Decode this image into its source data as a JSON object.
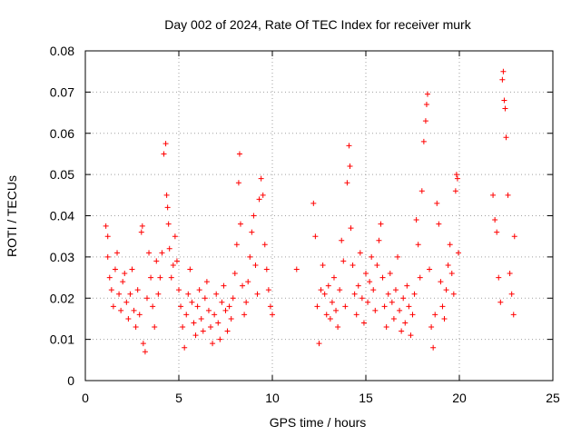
{
  "chart_data": {
    "type": "scatter",
    "title": "Day 002 of 2024, Rate Of TEC Index for receiver murk",
    "xlabel": "GPS time / hours",
    "ylabel": "ROTI / TECUs",
    "xlim": [
      0,
      25
    ],
    "ylim": [
      0,
      0.08
    ],
    "xticks": [
      0,
      5,
      10,
      15,
      20,
      25
    ],
    "xtick_labels": [
      "0",
      "5",
      "10",
      "15",
      "20",
      "25"
    ],
    "yticks": [
      0,
      0.01,
      0.02,
      0.03,
      0.04,
      0.05,
      0.06,
      0.07,
      0.08
    ],
    "ytick_labels": [
      "0",
      "0.01",
      "0.02",
      "0.03",
      "0.04",
      "0.05",
      "0.06",
      "0.07",
      "0.08"
    ],
    "grid": true,
    "marker": "plus",
    "color": "#ff0000",
    "series": [
      {
        "name": "ROTI",
        "points": [
          [
            1.1,
            0.0375
          ],
          [
            1.2,
            0.035
          ],
          [
            1.2,
            0.03
          ],
          [
            1.3,
            0.025
          ],
          [
            1.4,
            0.022
          ],
          [
            1.5,
            0.018
          ],
          [
            1.6,
            0.027
          ],
          [
            1.7,
            0.031
          ],
          [
            1.8,
            0.021
          ],
          [
            1.9,
            0.017
          ],
          [
            2.0,
            0.024
          ],
          [
            2.1,
            0.026
          ],
          [
            2.2,
            0.019
          ],
          [
            2.3,
            0.015
          ],
          [
            2.4,
            0.021
          ],
          [
            2.5,
            0.027
          ],
          [
            2.6,
            0.017
          ],
          [
            2.7,
            0.013
          ],
          [
            2.8,
            0.022
          ],
          [
            2.9,
            0.016
          ],
          [
            3.0,
            0.036
          ],
          [
            3.05,
            0.0375
          ],
          [
            3.1,
            0.009
          ],
          [
            3.2,
            0.007
          ],
          [
            3.3,
            0.02
          ],
          [
            3.4,
            0.031
          ],
          [
            3.5,
            0.025
          ],
          [
            3.6,
            0.018
          ],
          [
            3.7,
            0.013
          ],
          [
            3.8,
            0.029
          ],
          [
            3.9,
            0.021
          ],
          [
            4.0,
            0.025
          ],
          [
            4.1,
            0.031
          ],
          [
            4.2,
            0.055
          ],
          [
            4.3,
            0.0575
          ],
          [
            4.35,
            0.045
          ],
          [
            4.4,
            0.042
          ],
          [
            4.45,
            0.038
          ],
          [
            4.5,
            0.032
          ],
          [
            4.6,
            0.025
          ],
          [
            4.7,
            0.028
          ],
          [
            4.8,
            0.035
          ],
          [
            4.9,
            0.029
          ],
          [
            5.0,
            0.022
          ],
          [
            5.1,
            0.018
          ],
          [
            5.2,
            0.013
          ],
          [
            5.3,
            0.008
          ],
          [
            5.4,
            0.016
          ],
          [
            5.5,
            0.021
          ],
          [
            5.6,
            0.027
          ],
          [
            5.7,
            0.019
          ],
          [
            5.8,
            0.014
          ],
          [
            5.9,
            0.011
          ],
          [
            6.0,
            0.018
          ],
          [
            6.1,
            0.022
          ],
          [
            6.2,
            0.015
          ],
          [
            6.3,
            0.012
          ],
          [
            6.4,
            0.02
          ],
          [
            6.5,
            0.024
          ],
          [
            6.6,
            0.017
          ],
          [
            6.7,
            0.013
          ],
          [
            6.8,
            0.009
          ],
          [
            6.9,
            0.016
          ],
          [
            7.0,
            0.021
          ],
          [
            7.1,
            0.014
          ],
          [
            7.2,
            0.01
          ],
          [
            7.3,
            0.019
          ],
          [
            7.4,
            0.023
          ],
          [
            7.5,
            0.017
          ],
          [
            7.6,
            0.012
          ],
          [
            7.7,
            0.018
          ],
          [
            7.8,
            0.015
          ],
          [
            7.9,
            0.02
          ],
          [
            8.0,
            0.026
          ],
          [
            8.1,
            0.033
          ],
          [
            8.2,
            0.048
          ],
          [
            8.25,
            0.055
          ],
          [
            8.3,
            0.038
          ],
          [
            8.4,
            0.023
          ],
          [
            8.5,
            0.016
          ],
          [
            8.6,
            0.019
          ],
          [
            8.7,
            0.024
          ],
          [
            8.8,
            0.03
          ],
          [
            8.9,
            0.036
          ],
          [
            9.0,
            0.04
          ],
          [
            9.1,
            0.028
          ],
          [
            9.2,
            0.021
          ],
          [
            9.3,
            0.044
          ],
          [
            9.4,
            0.049
          ],
          [
            9.5,
            0.045
          ],
          [
            9.6,
            0.033
          ],
          [
            9.7,
            0.027
          ],
          [
            9.8,
            0.022
          ],
          [
            9.9,
            0.018
          ],
          [
            10.0,
            0.016
          ],
          [
            11.3,
            0.027
          ],
          [
            12.2,
            0.043
          ],
          [
            12.3,
            0.035
          ],
          [
            12.4,
            0.018
          ],
          [
            12.5,
            0.009
          ],
          [
            12.6,
            0.022
          ],
          [
            12.7,
            0.028
          ],
          [
            12.8,
            0.021
          ],
          [
            12.9,
            0.016
          ],
          [
            13.0,
            0.023
          ],
          [
            13.1,
            0.015
          ],
          [
            13.2,
            0.019
          ],
          [
            13.3,
            0.025
          ],
          [
            13.4,
            0.017
          ],
          [
            13.5,
            0.013
          ],
          [
            13.6,
            0.022
          ],
          [
            13.7,
            0.034
          ],
          [
            13.8,
            0.029
          ],
          [
            13.9,
            0.018
          ],
          [
            14.0,
            0.048
          ],
          [
            14.1,
            0.057
          ],
          [
            14.15,
            0.052
          ],
          [
            14.2,
            0.037
          ],
          [
            14.3,
            0.028
          ],
          [
            14.4,
            0.021
          ],
          [
            14.5,
            0.016
          ],
          [
            14.6,
            0.023
          ],
          [
            14.7,
            0.031
          ],
          [
            14.8,
            0.02
          ],
          [
            14.9,
            0.014
          ],
          [
            15.0,
            0.026
          ],
          [
            15.1,
            0.019
          ],
          [
            15.2,
            0.024
          ],
          [
            15.3,
            0.03
          ],
          [
            15.4,
            0.022
          ],
          [
            15.5,
            0.017
          ],
          [
            15.6,
            0.028
          ],
          [
            15.7,
            0.034
          ],
          [
            15.8,
            0.038
          ],
          [
            15.9,
            0.025
          ],
          [
            16.0,
            0.018
          ],
          [
            16.1,
            0.013
          ],
          [
            16.2,
            0.021
          ],
          [
            16.3,
            0.026
          ],
          [
            16.4,
            0.019
          ],
          [
            16.5,
            0.015
          ],
          [
            16.6,
            0.022
          ],
          [
            16.7,
            0.03
          ],
          [
            16.8,
            0.017
          ],
          [
            16.9,
            0.012
          ],
          [
            17.0,
            0.02
          ],
          [
            17.1,
            0.014
          ],
          [
            17.2,
            0.023
          ],
          [
            17.3,
            0.018
          ],
          [
            17.4,
            0.011
          ],
          [
            17.5,
            0.016
          ],
          [
            17.6,
            0.021
          ],
          [
            17.7,
            0.039
          ],
          [
            17.8,
            0.033
          ],
          [
            17.9,
            0.025
          ],
          [
            18.0,
            0.046
          ],
          [
            18.1,
            0.058
          ],
          [
            18.2,
            0.063
          ],
          [
            18.25,
            0.067
          ],
          [
            18.3,
            0.0695
          ],
          [
            18.4,
            0.027
          ],
          [
            18.5,
            0.013
          ],
          [
            18.6,
            0.008
          ],
          [
            18.7,
            0.016
          ],
          [
            18.8,
            0.043
          ],
          [
            18.9,
            0.038
          ],
          [
            19.0,
            0.024
          ],
          [
            19.1,
            0.018
          ],
          [
            19.2,
            0.015
          ],
          [
            19.3,
            0.022
          ],
          [
            19.4,
            0.028
          ],
          [
            19.5,
            0.033
          ],
          [
            19.6,
            0.026
          ],
          [
            19.7,
            0.021
          ],
          [
            19.8,
            0.046
          ],
          [
            19.85,
            0.05
          ],
          [
            19.9,
            0.049
          ],
          [
            19.95,
            0.031
          ],
          [
            21.8,
            0.045
          ],
          [
            21.9,
            0.039
          ],
          [
            22.0,
            0.036
          ],
          [
            22.1,
            0.025
          ],
          [
            22.2,
            0.019
          ],
          [
            22.3,
            0.073
          ],
          [
            22.35,
            0.075
          ],
          [
            22.4,
            0.068
          ],
          [
            22.45,
            0.066
          ],
          [
            22.5,
            0.059
          ],
          [
            22.6,
            0.045
          ],
          [
            22.7,
            0.026
          ],
          [
            22.8,
            0.021
          ],
          [
            22.9,
            0.016
          ],
          [
            22.95,
            0.035
          ]
        ]
      }
    ]
  }
}
